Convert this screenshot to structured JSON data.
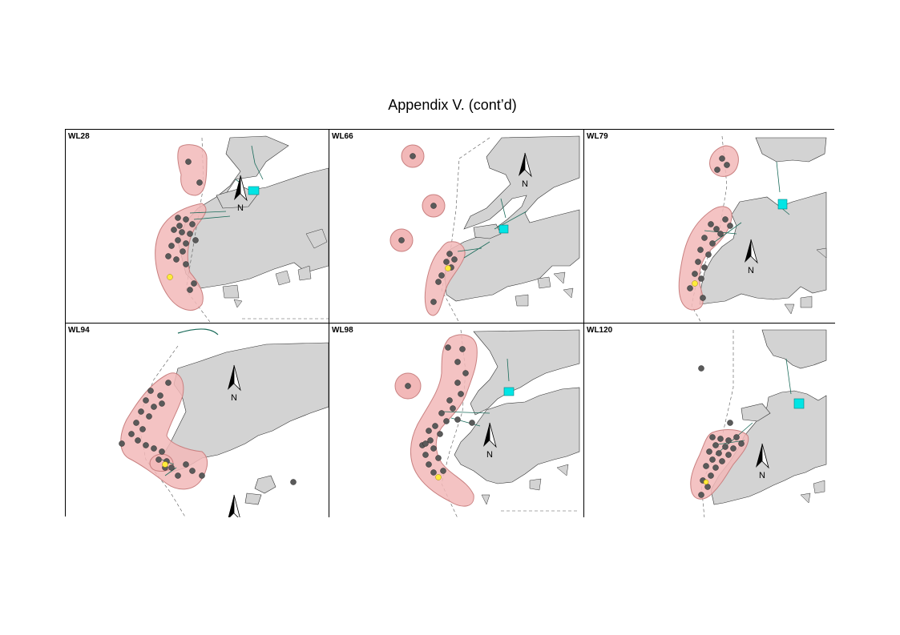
{
  "title": "Appendix V.  (cont’d)",
  "north_label": "N",
  "colors": {
    "land": "#d3d3d3",
    "range": "#f2b8b8",
    "range_edge": "#c98080",
    "sighting": "#5a5a5a",
    "highlight": "#ffeb3b",
    "marker": "#00e5e5"
  },
  "panels": [
    {
      "id": "WL28"
    },
    {
      "id": "WL66"
    },
    {
      "id": "WL79"
    },
    {
      "id": "WL94"
    },
    {
      "id": "WL98"
    },
    {
      "id": "WL120"
    }
  ]
}
